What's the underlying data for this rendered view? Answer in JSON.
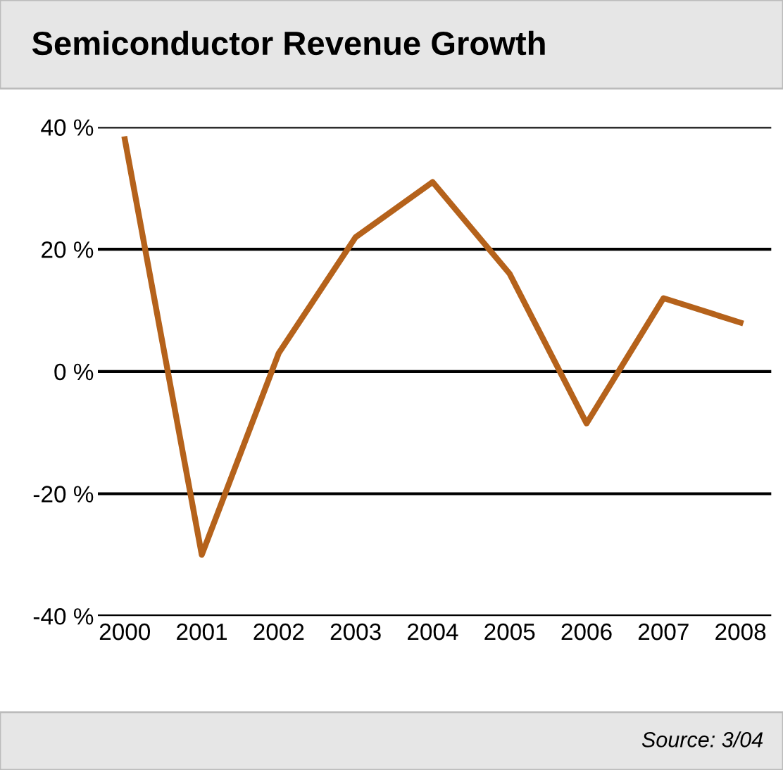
{
  "chart_data": {
    "type": "line",
    "title": "Semiconductor Revenue Growth",
    "categories": [
      "2000",
      "2001",
      "2002",
      "2003",
      "2004",
      "2005",
      "2006",
      "2007",
      "2008"
    ],
    "series": [
      {
        "color": "#b5621b",
        "values": [
          38,
          -30,
          3,
          22,
          31,
          16,
          -8.5,
          12,
          8
        ]
      }
    ],
    "ylim": [
      -40,
      40
    ],
    "yticks": [
      {
        "value": -40,
        "label": "-40 %"
      },
      {
        "value": -20,
        "label": "-20 %"
      },
      {
        "value": 0,
        "label": "0 %"
      },
      {
        "value": 20,
        "label": "20 %"
      },
      {
        "value": 40,
        "label": "40 %"
      }
    ],
    "grid": "y",
    "marker": "none",
    "line_style": "solid",
    "annotations": [
      "Source: 3/04"
    ]
  }
}
